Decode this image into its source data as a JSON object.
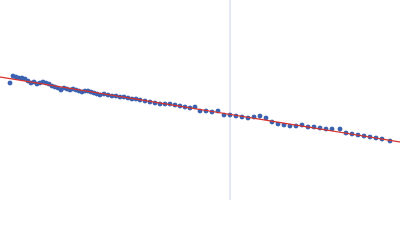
{
  "chart_data": {
    "type": "scatter",
    "x": [
      10,
      13,
      16,
      19,
      22,
      25,
      28,
      31,
      34,
      37,
      40,
      43,
      46,
      49,
      52,
      55,
      58,
      61,
      64,
      67,
      70,
      73,
      76,
      79,
      82,
      85,
      88,
      91,
      94,
      97,
      100,
      104,
      108,
      112,
      116,
      120,
      124,
      128,
      132,
      136,
      140,
      145,
      150,
      155,
      160,
      165,
      170,
      175,
      180,
      185,
      190,
      195,
      200,
      206,
      212,
      218,
      224,
      230,
      236,
      242,
      248,
      254,
      260,
      266,
      272,
      278,
      284,
      290,
      296,
      302,
      308,
      314,
      320,
      326,
      332,
      340,
      346,
      352,
      358,
      364,
      370,
      376,
      382,
      390
    ],
    "values": [
      117,
      124,
      123,
      122,
      122,
      121,
      119,
      117,
      118,
      116,
      117,
      118,
      117,
      116,
      114,
      113,
      112,
      110,
      112,
      111,
      110,
      111,
      110,
      109,
      108,
      109,
      109,
      108,
      107,
      106,
      105,
      106,
      105,
      104,
      104,
      103,
      103,
      102,
      101,
      101,
      100,
      99,
      98,
      97,
      96,
      96,
      96,
      95,
      94,
      93,
      92,
      93,
      89,
      89,
      88,
      89,
      85,
      85,
      84,
      83,
      82,
      83,
      84,
      82,
      78,
      76,
      75,
      74,
      74,
      75,
      73,
      73,
      72,
      71,
      71,
      71,
      67,
      66,
      65,
      64,
      63,
      62,
      61,
      59
    ],
    "color": "#3b62b0",
    "fit": {
      "x": [
        0,
        400
      ],
      "values": [
        123,
        58
      ],
      "color": "#d9302a"
    },
    "reference_x": 230,
    "reference_color": "#c9d2e6",
    "xlim": [
      0,
      400
    ],
    "ylim": [
      0,
      200
    ]
  }
}
